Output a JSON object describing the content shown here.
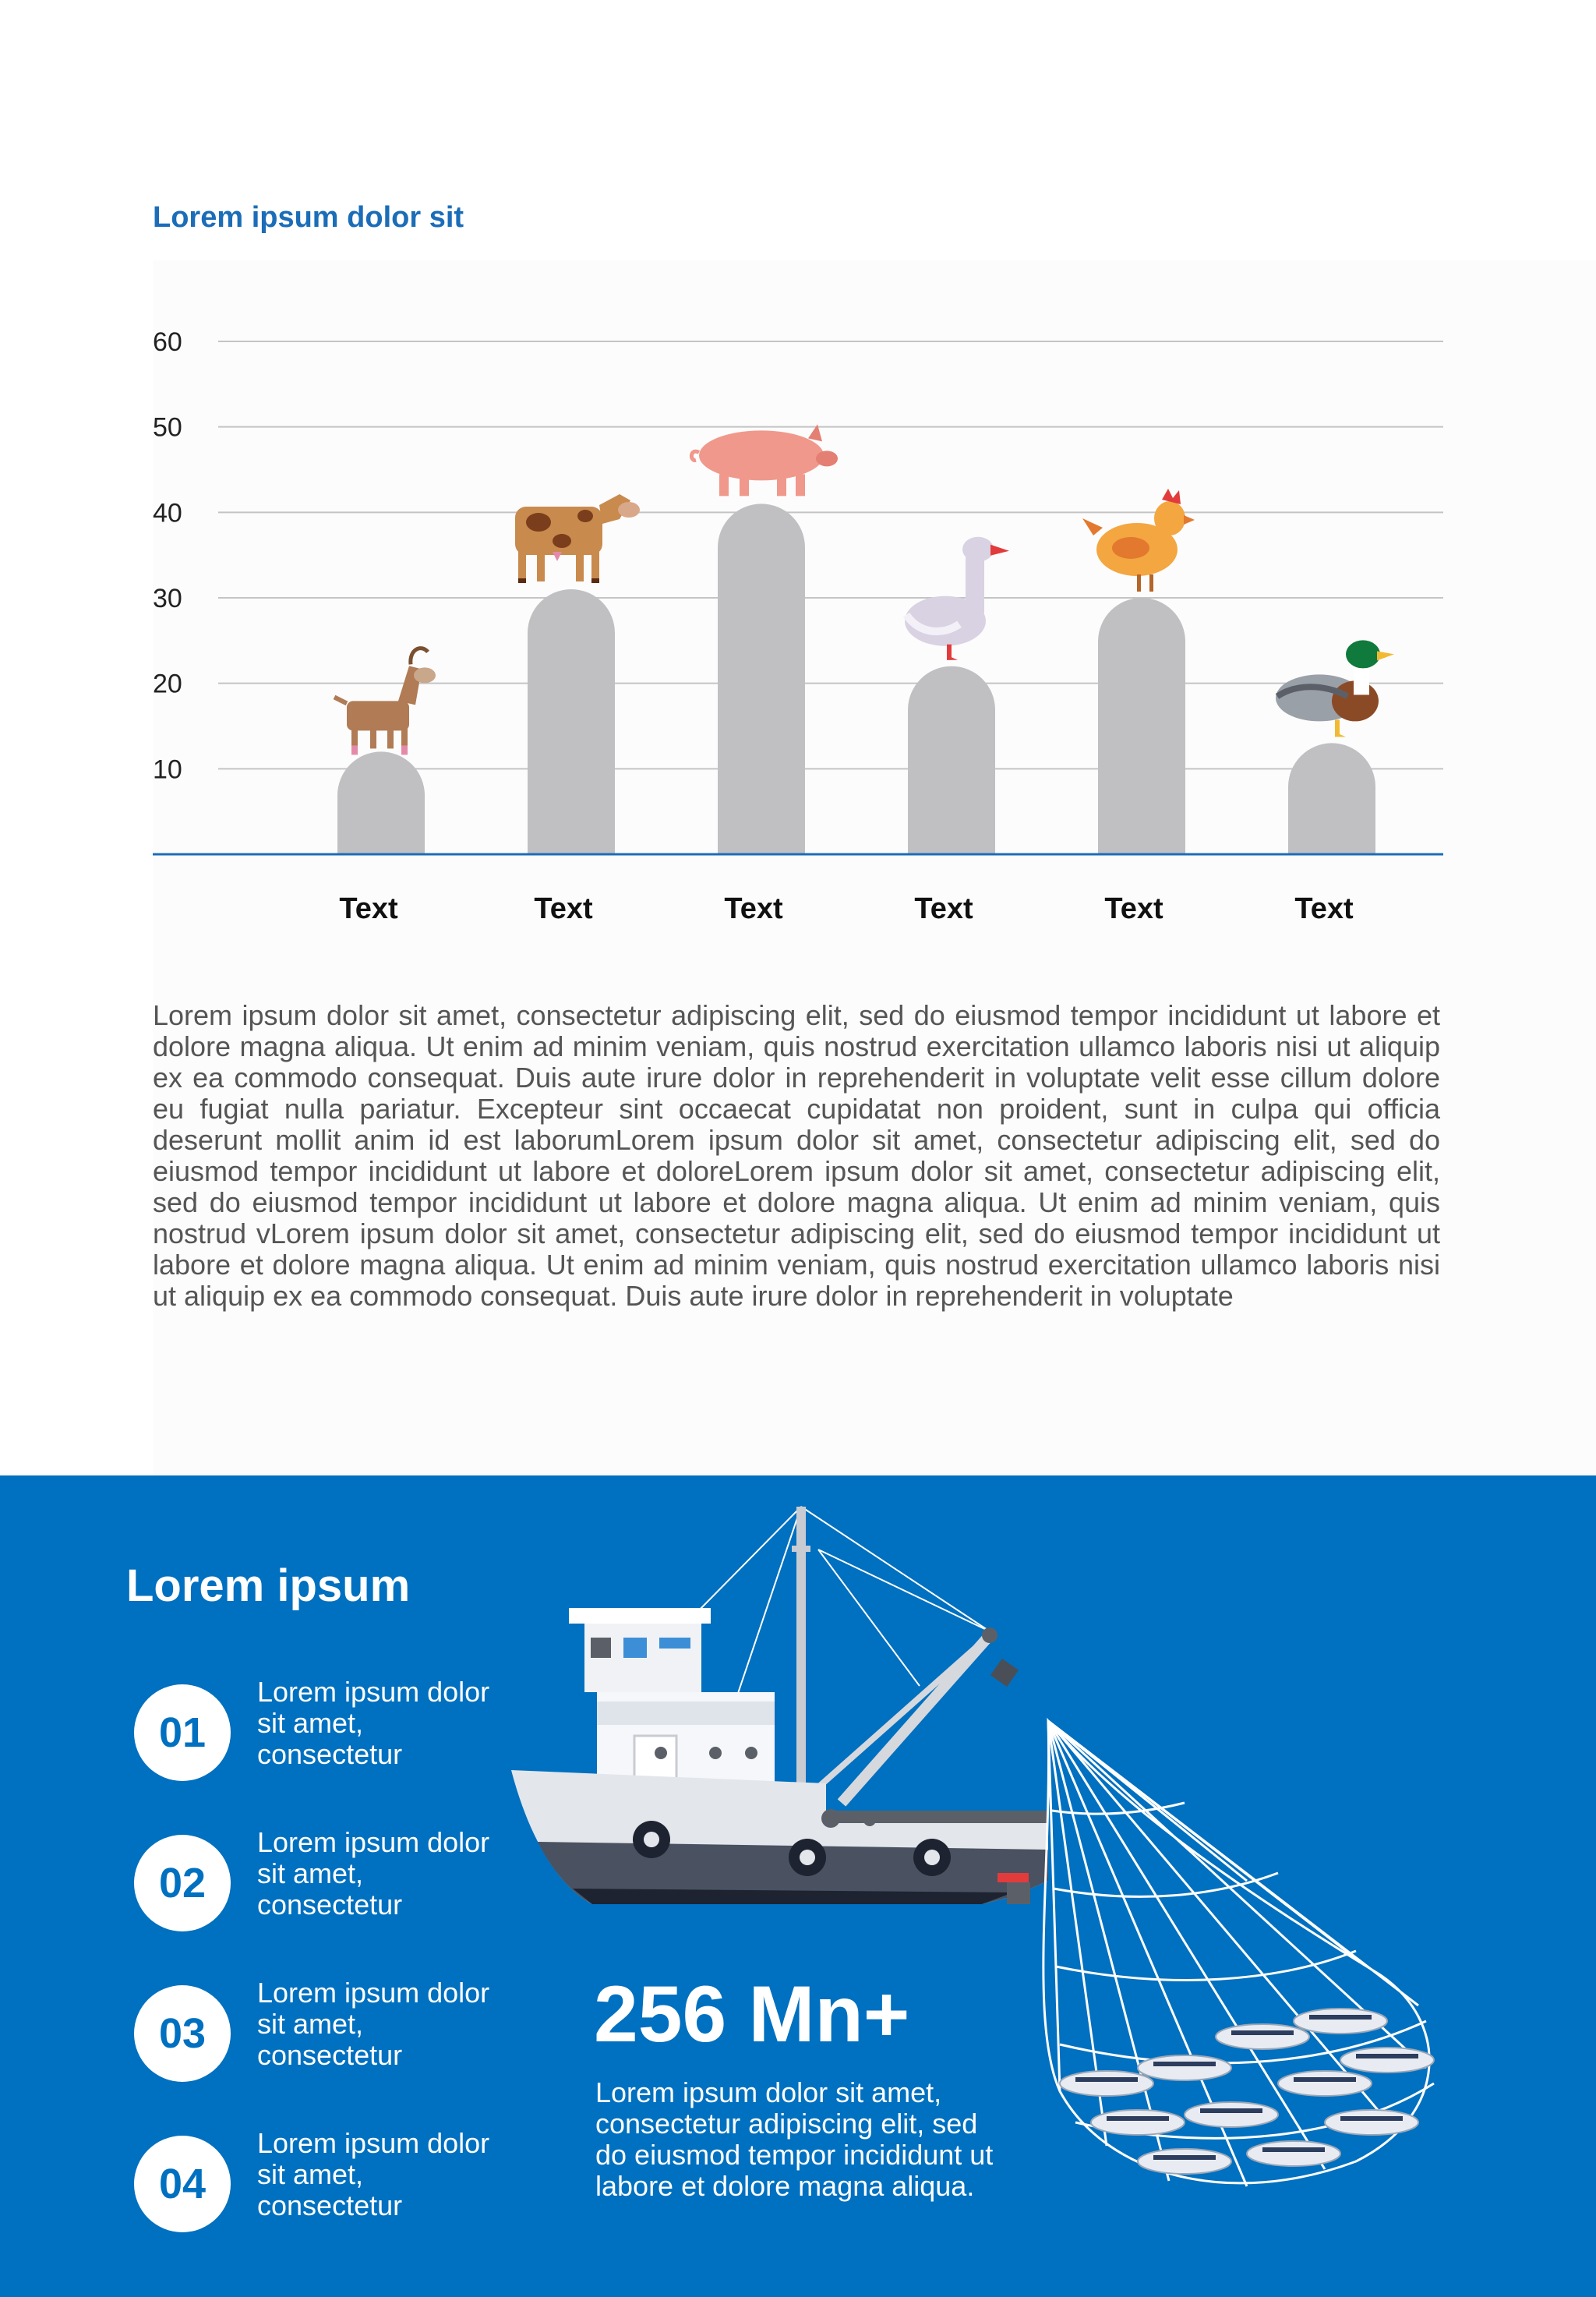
{
  "colors": {
    "accent": "#1b6db8",
    "bar": "#c0bfc2",
    "band": "#0070c0",
    "axis": "#1b6db8",
    "grid": "#c4c4c4"
  },
  "chart_data": {
    "type": "bar",
    "title": "Lorem ipsum dolor sit",
    "categories": [
      "Text",
      "Text",
      "Text",
      "Text",
      "Text",
      "Text"
    ],
    "values": [
      12,
      31,
      41,
      22,
      30,
      13
    ],
    "icons": [
      "goat-icon",
      "cow-icon",
      "pig-icon",
      "goose-icon",
      "chicken-icon",
      "duck-icon"
    ],
    "yticks": [
      10,
      20,
      30,
      40,
      50,
      60
    ],
    "ylim": [
      0,
      60
    ],
    "grid": true
  },
  "paragraph": "Lorem ipsum dolor sit amet, consectetur adipiscing elit, sed do eiusmod tempor incididunt ut labore et dolore magna aliqua. Ut enim ad minim veniam, quis nostrud exercitation ullamco laboris nisi ut aliquip ex ea commodo consequat. Duis aute irure dolor in reprehenderit in voluptate velit esse cillum dolore eu fugiat nulla pariatur. Excepteur sint occaecat cupidatat non proident, sunt in culpa qui officia deserunt mollit anim id est laborumLorem ipsum dolor sit amet, consectetur adipiscing elit, sed do eiusmod tempor incididunt ut labore et doloreLorem ipsum dolor sit amet, consectetur adipiscing elit, sed do eiusmod tempor incididunt ut labore et dolore magna aliqua. Ut enim ad minim veniam, quis nostrud vLorem ipsum dolor sit amet, consectetur adipiscing elit, sed do eiusmod tempor incididunt ut labore et dolore magna aliqua. Ut enim ad minim veniam, quis nostrud exercitation ullamco laboris nisi ut aliquip ex ea commodo consequat. Duis aute irure dolor in reprehenderit in voluptate",
  "bottom": {
    "title": "Lorem ipsum",
    "steps": [
      {
        "number": "01",
        "text": "Lorem ipsum dolor sit amet, consectetur"
      },
      {
        "number": "02",
        "text": "Lorem ipsum dolor sit amet, consectetur"
      },
      {
        "number": "03",
        "text": "Lorem ipsum dolor sit amet, consectetur"
      },
      {
        "number": "04",
        "text": "Lorem ipsum dolor sit amet, consectetur"
      }
    ],
    "stat_value": "256 Mn+",
    "stat_text": "Lorem ipsum dolor sit amet, consectetur adipiscing elit, sed do eiusmod tempor incididunt ut labore et dolore magna aliqua."
  }
}
